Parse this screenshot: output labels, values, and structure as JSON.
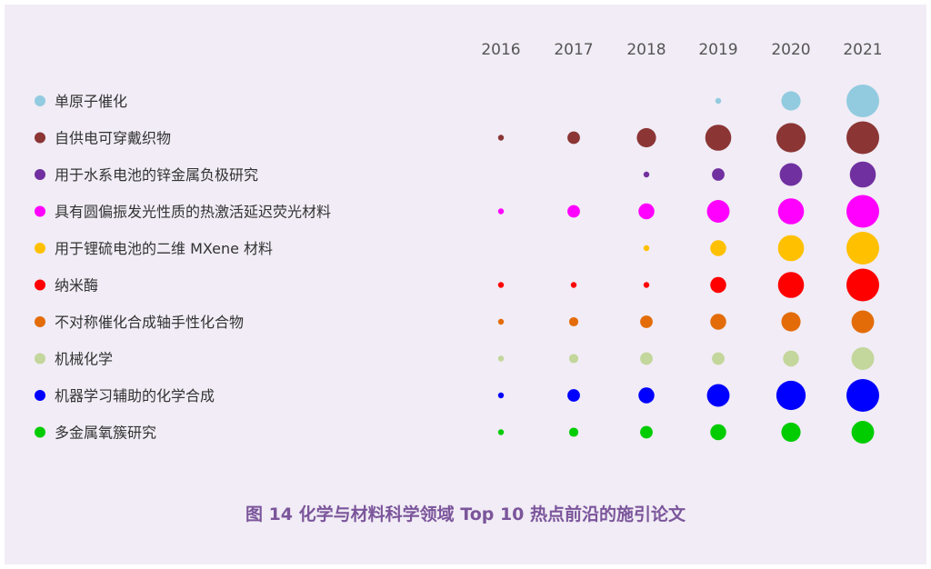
{
  "caption": "图 14  化学与材料科学领域 Top 10 热点前沿的施引论文",
  "chart_data": {
    "type": "bubble",
    "x": [
      "2016",
      "2017",
      "2018",
      "2019",
      "2020",
      "2021"
    ],
    "series": [
      {
        "name": "单原子催化",
        "color": "#92cbe0",
        "values": [
          null,
          null,
          null,
          1,
          3,
          5
        ]
      },
      {
        "name": "自供电可穿戴织物",
        "color": "#8b3535",
        "values": [
          1,
          2,
          3,
          4,
          4.5,
          5
        ]
      },
      {
        "name": "用于水系电池的锌金属负极研究",
        "color": "#7030a0",
        "values": [
          null,
          null,
          1,
          2,
          3.5,
          4
        ]
      },
      {
        "name": "具有圆偏振发光性质的热激活延迟荧光材料",
        "color": "#ff00ff",
        "values": [
          1,
          2,
          2.5,
          3.5,
          4,
          5
        ]
      },
      {
        "name": "用于锂硫电池的二维 MXene 材料",
        "color": "#ffc000",
        "values": [
          null,
          null,
          1,
          2.5,
          4,
          5
        ]
      },
      {
        "name": "纳米酶",
        "color": "#ff0000",
        "values": [
          1,
          1,
          1,
          2.5,
          4,
          5
        ]
      },
      {
        "name": "不对称催化合成轴手性化合物",
        "color": "#e36c09",
        "values": [
          1,
          1.5,
          2,
          2.5,
          3,
          3.5
        ]
      },
      {
        "name": "机械化学",
        "color": "#c3d69b",
        "values": [
          1,
          1.5,
          2,
          2,
          2.5,
          3.5
        ]
      },
      {
        "name": "机器学习辅助的化学合成",
        "color": "#0000ff",
        "values": [
          1,
          2,
          2.5,
          3.5,
          4.5,
          5
        ]
      },
      {
        "name": "多金属氧簇研究",
        "color": "#00cc00",
        "values": [
          1,
          1.5,
          2,
          2.5,
          3,
          3.5
        ]
      }
    ]
  }
}
